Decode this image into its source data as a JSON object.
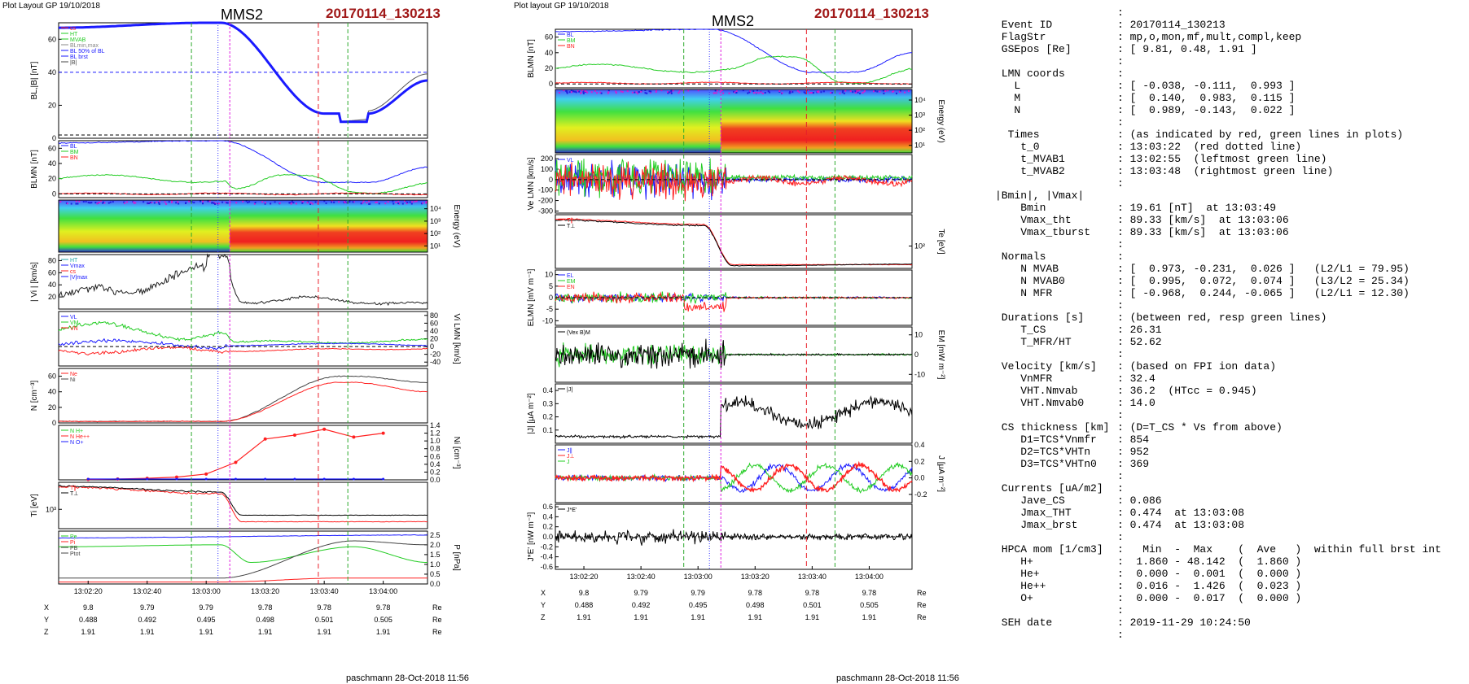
{
  "header": {
    "left_plot_label": "Plot Layout GP 19/10/2018",
    "right_plot_label": "Plot layout GP 19/10/2018",
    "spacecraft": "MMS2",
    "event": "20170114_130213"
  },
  "footer": {
    "left": "paschmann 28-Oct-2018 11:56",
    "right": "paschmann 28-Oct-2018 11:56"
  },
  "colors": {
    "event_red": "#a01818",
    "line_blue": "#1a1aff",
    "line_green": "#22cc22",
    "line_red": "#ff2020",
    "marker_red_dashed": "#e8202a",
    "marker_green_dashed": "#2eaa2e",
    "marker_magenta": "#e020e0",
    "marker_blue_dotted": "#3030ff"
  },
  "chart_data": [
    {
      "type": "line",
      "panel": "left",
      "time_ticks": [
        "13:02:20",
        "13:02:40",
        "13:03:00",
        "13:03:20",
        "13:03:40",
        "13:04:00"
      ],
      "position_table": {
        "X": {
          "values": [
            "9.8",
            "9.79",
            "9.79",
            "9.78",
            "9.78",
            "9.78"
          ],
          "unit": "Re"
        },
        "Y": {
          "values": [
            "0.488",
            "0.492",
            "0.495",
            "0.498",
            "0.501",
            "0.505"
          ],
          "unit": "Re"
        },
        "Z": {
          "values": [
            "1.91",
            "1.91",
            "1.91",
            "1.91",
            "1.91",
            "1.91"
          ],
          "unit": "Re"
        }
      },
      "panels": [
        {
          "ylabel": "BL,|B| [nT]",
          "ylim": [
            0,
            70
          ],
          "yticks": [
            "0",
            "20",
            "40",
            "60"
          ],
          "legend": [
            "cs",
            "HT",
            "MVAB",
            "BLmin,max",
            "BL 50% of BL",
            "BL brst",
            "|B|"
          ]
        },
        {
          "ylabel": "BLMN [nT]",
          "ylim": [
            -5,
            70
          ],
          "yticks": [
            "0",
            "20",
            "40",
            "60"
          ],
          "legend": [
            "BL",
            "BM",
            "BN"
          ]
        },
        {
          "ylabel": "Energy (eV)",
          "type": "heatmap",
          "yticks": [
            "10¹",
            "10²",
            "10³",
            "10⁴"
          ]
        },
        {
          "ylabel": "| Vi | [km/s]",
          "ylim": [
            0,
            90
          ],
          "yticks": [
            "20",
            "40",
            "60",
            "80"
          ],
          "legend": [
            "HT",
            "Vmax",
            "cs",
            "|V|max"
          ]
        },
        {
          "ylabel": "Vi LMN [km/s]",
          "ylim": [
            -50,
            90
          ],
          "yticks": [
            "-40",
            "-20",
            "0",
            "20",
            "40",
            "60",
            "80"
          ],
          "legend": [
            "VL",
            "VM",
            "VN"
          ]
        },
        {
          "ylabel": "N [cm⁻³]",
          "ylim": [
            0,
            70
          ],
          "yticks": [
            "0",
            "20",
            "40",
            "60"
          ],
          "legend": [
            "Ne",
            "Ni"
          ]
        },
        {
          "ylabel": "Ni [cm⁻³]",
          "ylim": [
            0,
            1.4
          ],
          "yticks": [
            "0.0",
            "0.2",
            "0.4",
            "0.6",
            "0.8",
            "1.0",
            "1.2",
            "1.4"
          ],
          "legend": [
            "N H+",
            "N He++",
            "N O+"
          ]
        },
        {
          "ylabel": "Ti [eV]",
          "type": "log",
          "yticks": [
            "10³"
          ],
          "legend": [
            "T∥",
            "T⊥"
          ]
        },
        {
          "ylabel": "P [nPa]",
          "ylim": [
            0,
            2.7
          ],
          "yticks": [
            "0.0",
            "0.5",
            "1.0",
            "1.5",
            "2.0",
            "2.5"
          ],
          "legend": [
            "Pe",
            "Pi",
            "PB",
            "Ptot"
          ]
        }
      ]
    },
    {
      "type": "line",
      "panel": "right",
      "time_ticks": [
        "13:02:20",
        "13:02:40",
        "13:03:00",
        "13:03:20",
        "13:03:40",
        "13:04:00"
      ],
      "position_table": {
        "X": {
          "values": [
            "9.8",
            "9.79",
            "9.79",
            "9.78",
            "9.78",
            "9.78"
          ],
          "unit": "Re"
        },
        "Y": {
          "values": [
            "0.488",
            "0.492",
            "0.495",
            "0.498",
            "0.501",
            "0.505"
          ],
          "unit": "Re"
        },
        "Z": {
          "values": [
            "1.91",
            "1.91",
            "1.91",
            "1.91",
            "1.91",
            "1.91"
          ],
          "unit": "Re"
        }
      },
      "panels": [
        {
          "ylabel": "BLMN [nT]",
          "ylim": [
            -5,
            70
          ],
          "yticks": [
            "0",
            "20",
            "40",
            "60"
          ],
          "legend": [
            "BL",
            "BM",
            "BN"
          ]
        },
        {
          "ylabel": "Energy (eV)",
          "type": "heatmap",
          "yticks": [
            "10¹",
            "10²",
            "10³",
            "10⁴"
          ]
        },
        {
          "ylabel": "Ve LMN [km/s]",
          "ylim": [
            -320,
            240
          ],
          "yticks": [
            "-300",
            "-200",
            "-100",
            "0",
            "100",
            "200"
          ],
          "legend": [
            "VL"
          ]
        },
        {
          "ylabel": "Te [eV]",
          "type": "log",
          "yticks": [
            "10²"
          ],
          "legend": [
            "T∥",
            "T⊥"
          ]
        },
        {
          "ylabel": "ELMN [mV m⁻¹]",
          "ylim": [
            -12,
            12
          ],
          "yticks": [
            "-10",
            "-5",
            "0",
            "5",
            "10"
          ],
          "legend": [
            "EL",
            "EM",
            "EN"
          ]
        },
        {
          "ylabel": "EM [mW m⁻²]",
          "ylim": [
            -14,
            14
          ],
          "yticks": [
            "-10",
            "0",
            "10"
          ],
          "legend": [
            "(Vex B)M"
          ]
        },
        {
          "ylabel": "|J| [μA m⁻²]",
          "ylim": [
            0,
            0.45
          ],
          "yticks": [
            "0.1",
            "0.2",
            "0.3",
            "0.4"
          ],
          "legend": [
            "|J|"
          ]
        },
        {
          "ylabel": "J [μA m⁻²]",
          "ylim": [
            -0.3,
            0.4
          ],
          "yticks": [
            "-0.2",
            "0.0",
            "0.2",
            "0.4"
          ],
          "legend": [
            "J∥",
            "J⊥",
            "J"
          ]
        },
        {
          "ylabel": "J*E' [nW m⁻³]",
          "ylim": [
            -0.65,
            0.65
          ],
          "yticks": [
            "-0.6",
            "-0.4",
            "-0.2",
            "0.0",
            "0.2",
            "0.4",
            "0.6"
          ],
          "legend": [
            "J*E'"
          ]
        }
      ]
    }
  ],
  "info": [
    {
      "k": "",
      "v": ":"
    },
    {
      "k": " Event ID",
      "v": ": 20170114_130213"
    },
    {
      "k": " FlagStr",
      "v": ": mp,o,mon,mf,mult,compl,keep"
    },
    {
      "k": " GSEpos [Re]",
      "v": ": [ 9.81, 0.48, 1.91 ]"
    },
    {
      "k": "",
      "v": ":"
    },
    {
      "k": " LMN coords",
      "v": ":"
    },
    {
      "k": "   L",
      "v": ": [ -0.038, -0.111,  0.993 ]"
    },
    {
      "k": "   M",
      "v": ": [  0.140,  0.983,  0.115 ]"
    },
    {
      "k": "   N",
      "v": ": [  0.989, -0.143,  0.022 ]"
    },
    {
      "k": "",
      "v": ":"
    },
    {
      "k": "  Times",
      "v": ": (as indicated by red, green lines in plots)"
    },
    {
      "k": "    t_0",
      "v": ": 13:03:22  (red dotted line)"
    },
    {
      "k": "    t_MVAB1",
      "v": ": 13:02:55  (leftmost green line)"
    },
    {
      "k": "    t_MVAB2",
      "v": ": 13:03:48  (rightmost green line)"
    },
    {
      "k": "",
      "v": ":"
    },
    {
      "k": "|Bmin|, |Vmax|",
      "v": ""
    },
    {
      "k": "    Bmin",
      "v": ": 19.61 [nT]  at 13:03:49"
    },
    {
      "k": "    Vmax_tht",
      "v": ": 89.33 [km/s]  at 13:03:06"
    },
    {
      "k": "    Vmax_tburst",
      "v": ": 89.33 [km/s]  at 13:03:06"
    },
    {
      "k": "",
      "v": ":"
    },
    {
      "k": " Normals",
      "v": ":"
    },
    {
      "k": "    N MVAB",
      "v": ": [  0.973, -0.231,  0.026 ]   (L2/L1 = 79.95)"
    },
    {
      "k": "    N MVAB0",
      "v": ": [  0.995,  0.072,  0.074 ]   (L3/L2 = 25.34)"
    },
    {
      "k": "    N MFR",
      "v": ": [ -0.968,  0.244, -0.065 ]   (L2/L1 = 12.30)"
    },
    {
      "k": "",
      "v": ":"
    },
    {
      "k": " Durations [s]",
      "v": ": (between red, resp green lines)"
    },
    {
      "k": "    T_CS",
      "v": ": 26.31"
    },
    {
      "k": "    T_MFR/HT",
      "v": ": 52.62"
    },
    {
      "k": "",
      "v": ":"
    },
    {
      "k": " Velocity [km/s]",
      "v": ": (based on FPI ion data)"
    },
    {
      "k": "    VnMFR",
      "v": ": 32.4"
    },
    {
      "k": "    VHT.Nmvab",
      "v": ": 36.2  (HTcc = 0.945)"
    },
    {
      "k": "    VHT.Nmvab0",
      "v": ": 14.0"
    },
    {
      "k": "",
      "v": ":"
    },
    {
      "k": " CS thickness [km]",
      "v": ": (D=T_CS * Vs from above)"
    },
    {
      "k": "    D1=TCS*Vnmfr",
      "v": ": 854"
    },
    {
      "k": "    D2=TCS*VHTn",
      "v": ": 952"
    },
    {
      "k": "    D3=TCS*VHTn0",
      "v": ": 369"
    },
    {
      "k": "",
      "v": ":"
    },
    {
      "k": " Currents [uA/m2]",
      "v": ":"
    },
    {
      "k": "    Jave_CS",
      "v": ": 0.086"
    },
    {
      "k": "    Jmax_THT",
      "v": ": 0.474  at 13:03:08"
    },
    {
      "k": "    Jmax_brst",
      "v": ": 0.474  at 13:03:08"
    },
    {
      "k": "",
      "v": ":"
    },
    {
      "k": " HPCA mom [1/cm3]",
      "v": ":   Min  -  Max    (  Ave   )  within full brst int"
    },
    {
      "k": "    H+",
      "v": ":  1.860 - 48.142  (  1.860 )"
    },
    {
      "k": "    He+",
      "v": ":  0.000 -  0.001  (  0.000 )"
    },
    {
      "k": "    He++",
      "v": ":  0.016 -  1.426  (  0.023 )"
    },
    {
      "k": "    O+",
      "v": ":  0.000 -  0.017  (  0.000 )"
    },
    {
      "k": "",
      "v": ":"
    },
    {
      "k": " SEH date",
      "v": ": 2019-11-29 10:24:50"
    },
    {
      "k": "",
      "v": ":"
    }
  ]
}
